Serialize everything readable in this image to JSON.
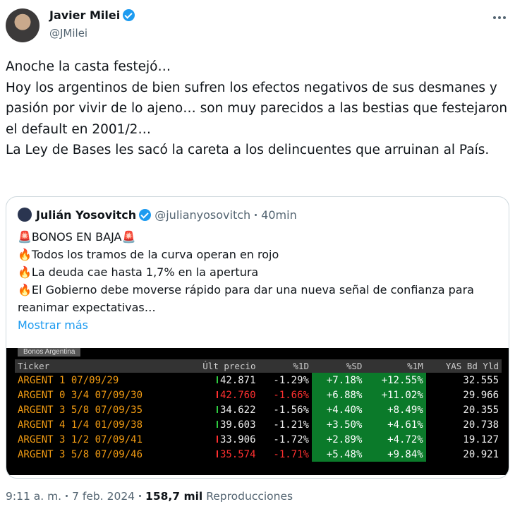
{
  "author": {
    "name": "Javier Milei",
    "handle": "@JMilei"
  },
  "body": [
    "Anoche la casta festejó…",
    "Hoy los argentinos de bien sufren los efectos negativos de sus desmanes y pasión por vivir de lo ajeno… son muy parecidos a las bestias que festejaron el default en 2001/2…",
    "La Ley de Bases les sacó la careta a los delincuentes que arruinan al País."
  ],
  "quote": {
    "name": "Julián Yosovitch",
    "handle": "@julianyosovitch",
    "time": "40min",
    "lines": [
      "🚨BONOS EN BAJA🚨",
      "🔥Todos los tramos de la curva operan en rojo",
      "🔥La deuda cae hasta 1,7% en la apertura",
      "🔥El Gobierno debe moverse rápido para dar una nueva señal de confianza para reanimar expectativas…"
    ],
    "more": "Mostrar más",
    "terminal": {
      "tab": "Bonos Argentina",
      "headers": [
        "Ticker",
        "Últ precio",
        "%1D",
        "%SD",
        "%1M",
        "YAS Bd Yld"
      ],
      "rows": [
        [
          "ARGENT 1 07/09/29",
          "42.871",
          "-1.29%",
          "+7.18%",
          "+12.55%",
          "32.555"
        ],
        [
          "ARGENT 0 3/4 07/09/30",
          "42.760",
          "-1.66%",
          "+6.88%",
          "+11.02%",
          "29.966"
        ],
        [
          "ARGENT 3 5/8 07/09/35",
          "34.622",
          "-1.56%",
          "+4.40%",
          "+8.49%",
          "20.355"
        ],
        [
          "ARGENT 4 1/4 01/09/38",
          "39.603",
          "-1.21%",
          "+3.50%",
          "+4.61%",
          "20.738"
        ],
        [
          "ARGENT 3 1/2 07/09/41",
          "33.906",
          "-1.72%",
          "+2.89%",
          "+4.72%",
          "19.127"
        ],
        [
          "ARGENT 3 5/8 07/09/46",
          "35.574",
          "-1.71%",
          "+5.48%",
          "+9.84%",
          "20.921"
        ]
      ]
    }
  },
  "footer": {
    "time": "9:11 a. m.",
    "date": "7 feb. 2024",
    "views": "158,7 mil",
    "views_label": "Reproducciones"
  }
}
